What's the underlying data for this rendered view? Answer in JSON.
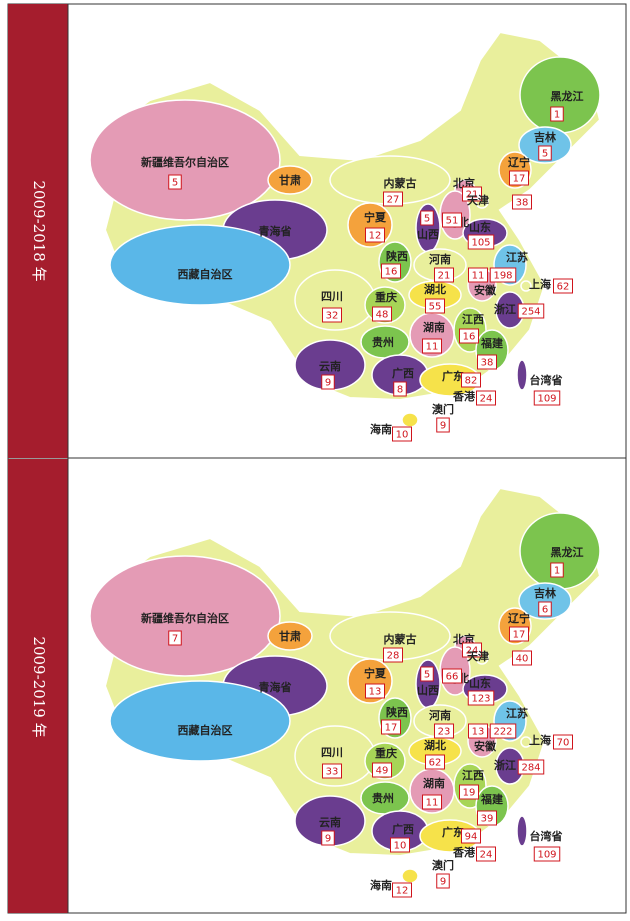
{
  "panels": [
    {
      "label": "2009-2018 年",
      "regions": [
        {
          "name": "黑龙江",
          "count": 1
        },
        {
          "name": "吉林",
          "count": 5
        },
        {
          "name": "辽宁",
          "count": 17
        },
        {
          "name": "新疆维吾尔自治区",
          "count": 5
        },
        {
          "name": "甘肃"
        },
        {
          "name": "内蒙古",
          "count": 27
        },
        {
          "name": "北京",
          "count": 21
        },
        {
          "name": "天津",
          "count": 38
        },
        {
          "name": "河北",
          "count": 51
        },
        {
          "name": "山西",
          "count": 5
        },
        {
          "name": "宁夏",
          "count": 12
        },
        {
          "name": "青海省"
        },
        {
          "name": "山东",
          "count": 105
        },
        {
          "name": "陕西",
          "count": 16
        },
        {
          "name": "河南",
          "count": 21
        },
        {
          "name": "江苏",
          "count": 198
        },
        {
          "name": "安徽",
          "count": 11
        },
        {
          "name": "上海",
          "count": 62
        },
        {
          "name": "西藏自治区"
        },
        {
          "name": "四川",
          "count": 32
        },
        {
          "name": "重庆",
          "count": 48
        },
        {
          "name": "湖北",
          "count": 55
        },
        {
          "name": "浙江",
          "count": 254
        },
        {
          "name": "贵州"
        },
        {
          "name": "湖南",
          "count": 11
        },
        {
          "name": "江西",
          "count": 16
        },
        {
          "name": "福建",
          "count": 38
        },
        {
          "name": "云南",
          "count": 9
        },
        {
          "name": "广西",
          "count": 8
        },
        {
          "name": "广东",
          "count": 82
        },
        {
          "name": "香港",
          "count": 24
        },
        {
          "name": "台湾省",
          "count": 109
        },
        {
          "name": "澳门",
          "count": 9
        },
        {
          "name": "海南",
          "count": 10
        }
      ]
    },
    {
      "label": "2009-2019 年",
      "regions": [
        {
          "name": "黑龙江",
          "count": 1
        },
        {
          "name": "吉林",
          "count": 6
        },
        {
          "name": "辽宁",
          "count": 17
        },
        {
          "name": "新疆维吾尔自治区",
          "count": 7
        },
        {
          "name": "甘肃"
        },
        {
          "name": "内蒙古",
          "count": 28
        },
        {
          "name": "北京",
          "count": 24
        },
        {
          "name": "天津",
          "count": 40
        },
        {
          "name": "河北",
          "count": 66
        },
        {
          "name": "山西",
          "count": 5
        },
        {
          "name": "宁夏",
          "count": 13
        },
        {
          "name": "青海省"
        },
        {
          "name": "山东",
          "count": 123
        },
        {
          "name": "陕西",
          "count": 17
        },
        {
          "name": "河南",
          "count": 23
        },
        {
          "name": "江苏",
          "count": 222
        },
        {
          "name": "安徽",
          "count": 13
        },
        {
          "name": "上海",
          "count": 70
        },
        {
          "name": "西藏自治区"
        },
        {
          "name": "四川",
          "count": 33
        },
        {
          "name": "重庆",
          "count": 49
        },
        {
          "name": "湖北",
          "count": 62
        },
        {
          "name": "浙江",
          "count": 284
        },
        {
          "name": "贵州"
        },
        {
          "name": "湖南",
          "count": 11
        },
        {
          "name": "江西",
          "count": 19
        },
        {
          "name": "福建",
          "count": 39
        },
        {
          "name": "云南",
          "count": 9
        },
        {
          "name": "广西",
          "count": 10
        },
        {
          "name": "广东",
          "count": 94
        },
        {
          "name": "香港",
          "count": 24
        },
        {
          "name": "台湾省",
          "count": 109
        },
        {
          "name": "澳门",
          "count": 9
        },
        {
          "name": "海南",
          "count": 12
        }
      ]
    }
  ]
}
